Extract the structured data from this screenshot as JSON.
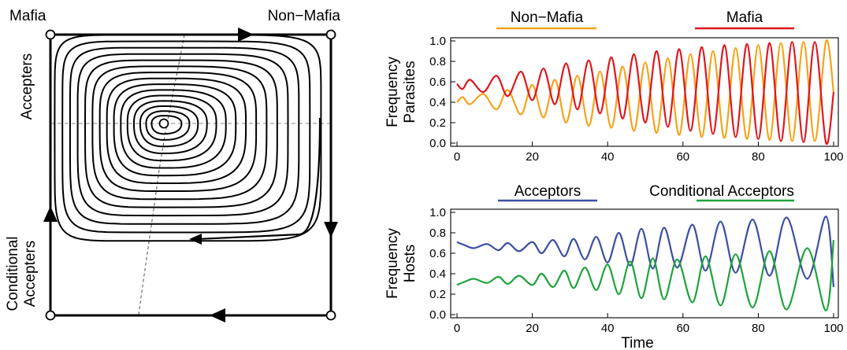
{
  "phase_portrait": {
    "corner_labels": {
      "top_left": "Mafia",
      "top_right": "Non−Mafia",
      "left_upper": "Accepters",
      "left_lower_line1": "Conditional",
      "left_lower_line2": "Accepters"
    }
  },
  "chart_data": [
    {
      "type": "line",
      "panel": "parasites",
      "ylabel_line1": "Frequency",
      "ylabel_line2": "Parasites",
      "xlabel": "",
      "xlim": [
        0,
        100
      ],
      "ylim": [
        0,
        1
      ],
      "xticks": [
        0,
        20,
        40,
        60,
        80,
        100
      ],
      "yticks": [
        0.0,
        0.2,
        0.4,
        0.6,
        0.8,
        1.0
      ],
      "ytick_labels": [
        "0.0",
        "0.2",
        "0.4",
        "0.6",
        "0.8",
        "1.0"
      ],
      "legend_placement": "top",
      "series": [
        {
          "name": "Non−Mafia",
          "color": "#f5a31a",
          "x": [
            0,
            1.5,
            3.5,
            7,
            10.5,
            13.5,
            17,
            20,
            23,
            26,
            29,
            32,
            35,
            38,
            41,
            44,
            47,
            50,
            53,
            56,
            59,
            62,
            65,
            68,
            71,
            74,
            77,
            80,
            83,
            86,
            89,
            92,
            95,
            98,
            100
          ],
          "y": [
            0.4,
            0.45,
            0.38,
            0.48,
            0.33,
            0.52,
            0.28,
            0.57,
            0.25,
            0.62,
            0.2,
            0.66,
            0.17,
            0.7,
            0.15,
            0.75,
            0.12,
            0.79,
            0.1,
            0.83,
            0.08,
            0.87,
            0.06,
            0.9,
            0.05,
            0.93,
            0.04,
            0.96,
            0.03,
            0.98,
            0.02,
            0.99,
            0.02,
            1.0,
            0.5
          ]
        },
        {
          "name": "Mafia",
          "color": "#e0161e",
          "x": [
            0,
            1.5,
            3.5,
            7,
            10.5,
            13.5,
            17,
            20,
            23,
            26,
            29,
            32,
            35,
            38,
            41,
            44,
            47,
            50,
            53,
            56,
            59,
            62,
            65,
            68,
            71,
            74,
            77,
            80,
            83,
            86,
            89,
            92,
            95,
            98,
            100
          ],
          "y": [
            0.58,
            0.53,
            0.62,
            0.5,
            0.66,
            0.46,
            0.7,
            0.42,
            0.73,
            0.38,
            0.78,
            0.33,
            0.81,
            0.29,
            0.84,
            0.24,
            0.87,
            0.2,
            0.9,
            0.16,
            0.92,
            0.12,
            0.94,
            0.09,
            0.96,
            0.06,
            0.97,
            0.04,
            0.98,
            0.02,
            0.99,
            0.01,
            0.99,
            0.0,
            0.5
          ]
        }
      ]
    },
    {
      "type": "line",
      "panel": "hosts",
      "ylabel_line1": "Frequency",
      "ylabel_line2": "Hosts",
      "xlabel": "Time",
      "xlim": [
        0,
        100
      ],
      "ylim": [
        0,
        1
      ],
      "xticks": [
        0,
        20,
        40,
        60,
        80,
        100
      ],
      "yticks": [
        0.0,
        0.2,
        0.4,
        0.6,
        0.8,
        1.0
      ],
      "ytick_labels": [
        "0.0",
        "0.2",
        "0.4",
        "0.6",
        "0.8",
        "1.0"
      ],
      "legend_placement": "top",
      "series": [
        {
          "name": "Acceptors",
          "color": "#3b4fa3",
          "x": [
            0,
            2,
            4.5,
            8,
            11,
            13.5,
            16.5,
            20,
            22.5,
            25.5,
            28.5,
            31,
            34,
            37,
            40,
            43,
            46,
            49,
            52,
            55,
            58.5,
            62.5,
            66,
            70,
            74,
            78.5,
            83,
            87.5,
            93,
            98,
            100
          ],
          "y": [
            0.71,
            0.68,
            0.65,
            0.69,
            0.63,
            0.7,
            0.62,
            0.71,
            0.6,
            0.73,
            0.57,
            0.74,
            0.54,
            0.76,
            0.51,
            0.8,
            0.48,
            0.84,
            0.45,
            0.85,
            0.46,
            0.88,
            0.43,
            0.91,
            0.41,
            0.93,
            0.38,
            0.95,
            0.35,
            0.96,
            0.27
          ]
        },
        {
          "name": "Conditional Acceptors",
          "color": "#1fa33c",
          "x": [
            0,
            2,
            4.5,
            8,
            11,
            13.5,
            16.5,
            20,
            22.5,
            25.5,
            28.5,
            31,
            34,
            37,
            40,
            43,
            46,
            49,
            52,
            55,
            58.5,
            62.5,
            66,
            70,
            74,
            78.5,
            83,
            87.5,
            93,
            98,
            100
          ],
          "y": [
            0.29,
            0.32,
            0.35,
            0.31,
            0.37,
            0.3,
            0.38,
            0.29,
            0.4,
            0.27,
            0.43,
            0.26,
            0.46,
            0.24,
            0.49,
            0.2,
            0.52,
            0.16,
            0.55,
            0.15,
            0.54,
            0.12,
            0.57,
            0.09,
            0.59,
            0.07,
            0.62,
            0.05,
            0.65,
            0.04,
            0.73
          ]
        }
      ]
    }
  ]
}
